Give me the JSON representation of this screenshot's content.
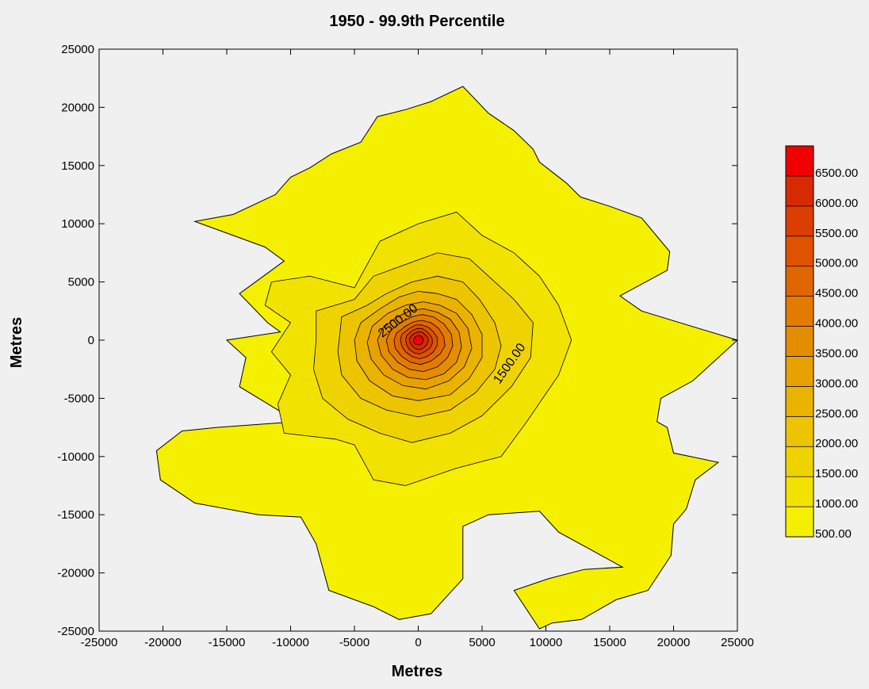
{
  "chart_data": {
    "type": "contour",
    "title": "1950 - 99.9th Percentile",
    "xlabel": "Metres",
    "ylabel": "Metres",
    "xlim": [
      -25000,
      25000
    ],
    "ylim": [
      -25000,
      25000
    ],
    "xticks": [
      "-25000",
      "-20000",
      "-15000",
      "-10000",
      "-5000",
      "0",
      "5000",
      "10000",
      "15000",
      "20000",
      "25000"
    ],
    "yticks": [
      "25000",
      "20000",
      "15000",
      "10000",
      "5000",
      "0",
      "-5000",
      "-10000",
      "-15000",
      "-20000",
      "-25000"
    ],
    "grid": false,
    "legend_position": "right",
    "levels": [
      "500.00",
      "1000.00",
      "1500.00",
      "2000.00",
      "2500.00",
      "3000.00",
      "3500.00",
      "4000.00",
      "4500.00",
      "5000.00",
      "5500.00",
      "6000.00",
      "6500.00"
    ],
    "level_colors": [
      "#f5f000",
      "#f2e200",
      "#efd300",
      "#ecc400",
      "#eab300",
      "#e8a200",
      "#e58d00",
      "#e37b00",
      "#e06600",
      "#de5200",
      "#db3e00",
      "#d82a00",
      "#f00000"
    ],
    "contour_labels": [
      {
        "text": "2500.00",
        "x": -1400,
        "y": 1400,
        "angle": -38
      },
      {
        "text": "1500.00",
        "x": 7400,
        "y": -2200,
        "angle": -55
      }
    ],
    "outer_boundary_500": [
      [
        -17500,
        10200
      ],
      [
        -12000,
        8000
      ],
      [
        -10500,
        6800
      ],
      [
        -14000,
        4000
      ],
      [
        -11800,
        1500
      ],
      [
        -10800,
        700
      ],
      [
        -15000,
        0
      ],
      [
        -13500,
        -1500
      ],
      [
        -14000,
        -4000
      ],
      [
        -9500,
        -7000
      ],
      [
        -15800,
        -7500
      ],
      [
        -17500,
        -7700
      ],
      [
        -18500,
        -7800
      ],
      [
        -20500,
        -9500
      ],
      [
        -20200,
        -12000
      ],
      [
        -17500,
        -14000
      ],
      [
        -12500,
        -15000
      ],
      [
        -9200,
        -15200
      ],
      [
        -8000,
        -17500
      ],
      [
        -7000,
        -21500
      ],
      [
        -3500,
        -22900
      ],
      [
        -1500,
        -24000
      ],
      [
        1000,
        -23500
      ],
      [
        3500,
        -20500
      ],
      [
        3500,
        -16000
      ],
      [
        5500,
        -15000
      ],
      [
        9500,
        -14700
      ],
      [
        11000,
        -16500
      ],
      [
        13500,
        -18000
      ],
      [
        16000,
        -19500
      ],
      [
        13000,
        -19700
      ],
      [
        10200,
        -20500
      ],
      [
        7500,
        -21500
      ],
      [
        9500,
        -24800
      ],
      [
        10500,
        -24300
      ],
      [
        12800,
        -24000
      ],
      [
        15500,
        -22300
      ],
      [
        18000,
        -21500
      ],
      [
        19800,
        -18500
      ],
      [
        20000,
        -15800
      ],
      [
        21000,
        -14500
      ],
      [
        21700,
        -12000
      ],
      [
        23500,
        -10500
      ],
      [
        20000,
        -9700
      ],
      [
        19500,
        -7500
      ],
      [
        18700,
        -7000
      ],
      [
        19000,
        -5000
      ],
      [
        21500,
        -3500
      ],
      [
        25000,
        0
      ],
      [
        17500,
        2500
      ],
      [
        15800,
        3800
      ],
      [
        19500,
        6000
      ],
      [
        19700,
        7600
      ],
      [
        17500,
        10500
      ],
      [
        15000,
        11500
      ],
      [
        12700,
        12300
      ],
      [
        11600,
        13500
      ],
      [
        9500,
        15300
      ],
      [
        9000,
        16400
      ],
      [
        7500,
        18000
      ],
      [
        5500,
        19500
      ],
      [
        3500,
        21800
      ],
      [
        1000,
        20500
      ],
      [
        -1000,
        19800
      ],
      [
        -3200,
        19200
      ],
      [
        -4500,
        17000
      ],
      [
        -6800,
        16000
      ],
      [
        -8500,
        14800
      ],
      [
        -10000,
        14000
      ],
      [
        -11200,
        12500
      ],
      [
        -14500,
        10800
      ],
      [
        -16000,
        10500
      ]
    ],
    "inner_contours": [
      {
        "level": "1000.00",
        "points": [
          [
            -11500,
            5000
          ],
          [
            -8500,
            5500
          ],
          [
            -5000,
            4500
          ],
          [
            -3000,
            8500
          ],
          [
            0,
            10000
          ],
          [
            3000,
            11000
          ],
          [
            5000,
            9000
          ],
          [
            7500,
            7500
          ],
          [
            9500,
            5500
          ],
          [
            11000,
            3000
          ],
          [
            12000,
            0
          ],
          [
            11000,
            -3000
          ],
          [
            8500,
            -7000
          ],
          [
            6500,
            -10000
          ],
          [
            3000,
            -11000
          ],
          [
            -1000,
            -12500
          ],
          [
            -3500,
            -12000
          ],
          [
            -5000,
            -9000
          ],
          [
            -6500,
            -8500
          ],
          [
            -10500,
            -8000
          ],
          [
            -11000,
            -5500
          ],
          [
            -10000,
            -3000
          ],
          [
            -11500,
            -1000
          ],
          [
            -10000,
            1500
          ],
          [
            -12000,
            3000
          ]
        ]
      },
      {
        "level": "1500.00",
        "points": [
          [
            -8000,
            2500
          ],
          [
            -5000,
            3500
          ],
          [
            -3500,
            5500
          ],
          [
            -1000,
            6500
          ],
          [
            1500,
            7500
          ],
          [
            4000,
            7000
          ],
          [
            6000,
            5000
          ],
          [
            7500,
            3500
          ],
          [
            9000,
            1500
          ],
          [
            8800,
            -1500
          ],
          [
            7300,
            -4000
          ],
          [
            5000,
            -6500
          ],
          [
            2500,
            -8000
          ],
          [
            -500,
            -8800
          ],
          [
            -3000,
            -8000
          ],
          [
            -5500,
            -6800
          ],
          [
            -7500,
            -5000
          ],
          [
            -8200,
            -2500
          ],
          [
            -8000,
            0
          ]
        ]
      },
      {
        "level": "2000.00",
        "points": [
          [
            -6000,
            2000
          ],
          [
            -4000,
            3000
          ],
          [
            -2500,
            4000
          ],
          [
            -500,
            5000
          ],
          [
            1500,
            5500
          ],
          [
            3500,
            5000
          ],
          [
            4800,
            3500
          ],
          [
            6000,
            1500
          ],
          [
            6500,
            -500
          ],
          [
            6000,
            -2500
          ],
          [
            4500,
            -4500
          ],
          [
            2500,
            -6000
          ],
          [
            0,
            -6600
          ],
          [
            -2500,
            -6000
          ],
          [
            -4500,
            -5000
          ],
          [
            -6000,
            -3000
          ],
          [
            -6300,
            -1000
          ]
        ]
      },
      {
        "level": "2500.00",
        "points": [
          [
            -4500,
            1500
          ],
          [
            -3000,
            2700
          ],
          [
            -1500,
            3700
          ],
          [
            0,
            4200
          ],
          [
            1500,
            4000
          ],
          [
            3000,
            3500
          ],
          [
            4200,
            2200
          ],
          [
            5000,
            500
          ],
          [
            5000,
            -1500
          ],
          [
            4000,
            -3300
          ],
          [
            2500,
            -4700
          ],
          [
            0,
            -5200
          ],
          [
            -2000,
            -4800
          ],
          [
            -3800,
            -3500
          ],
          [
            -4800,
            -1800
          ],
          [
            -5000,
            0
          ]
        ]
      },
      {
        "level": "3000.00",
        "points": [
          [
            -3600,
            1200
          ],
          [
            -2400,
            2300
          ],
          [
            -1000,
            3000
          ],
          [
            400,
            3300
          ],
          [
            1700,
            3000
          ],
          [
            3000,
            2300
          ],
          [
            3900,
            1000
          ],
          [
            4200,
            -700
          ],
          [
            3600,
            -2300
          ],
          [
            2400,
            -3500
          ],
          [
            600,
            -4200
          ],
          [
            -1200,
            -3900
          ],
          [
            -2700,
            -3000
          ],
          [
            -3700,
            -1600
          ],
          [
            -4000,
            -200
          ]
        ]
      },
      {
        "level": "3500.00",
        "points": [
          [
            -2800,
            1000
          ],
          [
            -1800,
            1900
          ],
          [
            -700,
            2500
          ],
          [
            400,
            2700
          ],
          [
            1500,
            2400
          ],
          [
            2500,
            1800
          ],
          [
            3200,
            700
          ],
          [
            3400,
            -600
          ],
          [
            3000,
            -1900
          ],
          [
            2000,
            -2900
          ],
          [
            600,
            -3400
          ],
          [
            -800,
            -3200
          ],
          [
            -2000,
            -2500
          ],
          [
            -2900,
            -1300
          ],
          [
            -3200,
            0
          ]
        ]
      },
      {
        "level": "4000.00",
        "points": [
          [
            -2200,
            800
          ],
          [
            -1400,
            1500
          ],
          [
            -500,
            2000
          ],
          [
            300,
            2200
          ],
          [
            1200,
            2000
          ],
          [
            2000,
            1400
          ],
          [
            2600,
            500
          ],
          [
            2700,
            -500
          ],
          [
            2300,
            -1500
          ],
          [
            1500,
            -2300
          ],
          [
            400,
            -2700
          ],
          [
            -700,
            -2500
          ],
          [
            -1600,
            -1900
          ],
          [
            -2300,
            -1000
          ],
          [
            -2500,
            0
          ]
        ]
      },
      {
        "level": "4500.00",
        "points": [
          [
            -1700,
            600
          ],
          [
            -1000,
            1200
          ],
          [
            -300,
            1600
          ],
          [
            300,
            1700
          ],
          [
            1000,
            1500
          ],
          [
            1600,
            1000
          ],
          [
            2000,
            300
          ],
          [
            2100,
            -500
          ],
          [
            1700,
            -1200
          ],
          [
            1000,
            -1800
          ],
          [
            200,
            -2100
          ],
          [
            -600,
            -1900
          ],
          [
            -1300,
            -1400
          ],
          [
            -1800,
            -700
          ],
          [
            -1900,
            0
          ]
        ]
      },
      {
        "level": "5000.00",
        "points": [
          [
            -1300,
            500
          ],
          [
            -700,
            1000
          ],
          [
            -200,
            1300
          ],
          [
            300,
            1300
          ],
          [
            800,
            1100
          ],
          [
            1200,
            700
          ],
          [
            1500,
            200
          ],
          [
            1500,
            -400
          ],
          [
            1200,
            -1000
          ],
          [
            700,
            -1400
          ],
          [
            100,
            -1600
          ],
          [
            -500,
            -1400
          ],
          [
            -1000,
            -1000
          ],
          [
            -1300,
            -500
          ],
          [
            -1400,
            0
          ]
        ]
      },
      {
        "level": "5500.00",
        "points": [
          [
            -900,
            400
          ],
          [
            -500,
            800
          ],
          [
            -100,
            1000
          ],
          [
            300,
            1000
          ],
          [
            600,
            800
          ],
          [
            900,
            500
          ],
          [
            1100,
            100
          ],
          [
            1100,
            -300
          ],
          [
            900,
            -700
          ],
          [
            500,
            -1000
          ],
          [
            100,
            -1200
          ],
          [
            -300,
            -1100
          ],
          [
            -700,
            -800
          ],
          [
            -900,
            -400
          ],
          [
            -1000,
            0
          ]
        ]
      },
      {
        "level": "6000.00",
        "points": [
          [
            -600,
            300
          ],
          [
            -300,
            600
          ],
          [
            0,
            700
          ],
          [
            300,
            700
          ],
          [
            500,
            500
          ],
          [
            700,
            300
          ],
          [
            800,
            0
          ],
          [
            700,
            -300
          ],
          [
            500,
            -600
          ],
          [
            200,
            -800
          ],
          [
            -100,
            -800
          ],
          [
            -400,
            -600
          ],
          [
            -600,
            -300
          ],
          [
            -700,
            0
          ]
        ]
      },
      {
        "level": "6500.00",
        "points": [
          [
            -300,
            200
          ],
          [
            -100,
            400
          ],
          [
            100,
            400
          ],
          [
            300,
            300
          ],
          [
            400,
            100
          ],
          [
            400,
            -100
          ],
          [
            300,
            -300
          ],
          [
            100,
            -400
          ],
          [
            -100,
            -400
          ],
          [
            -300,
            -300
          ],
          [
            -400,
            -100
          ]
        ]
      }
    ]
  }
}
